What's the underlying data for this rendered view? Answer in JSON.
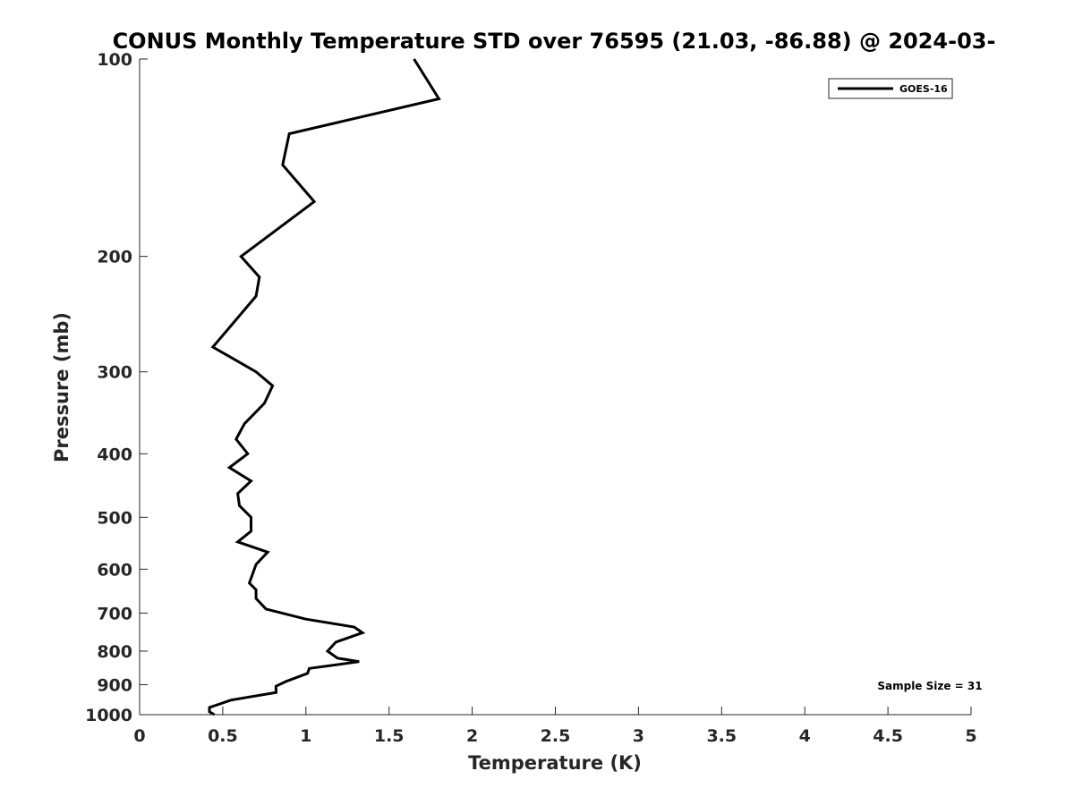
{
  "chart_data": {
    "type": "line",
    "title": "CONUS Monthly Temperature STD over 76595 (21.03, -86.88) @ 2024-03-",
    "xlabel": "Temperature (K)",
    "ylabel": "Pressure (mb)",
    "xlim": [
      0,
      5
    ],
    "ylim": [
      1000,
      100
    ],
    "y_scale": "log",
    "y_reversed": true,
    "x_ticks": [
      "0",
      "0.5",
      "1",
      "1.5",
      "2",
      "2.5",
      "3",
      "3.5",
      "4",
      "4.5",
      "5"
    ],
    "y_ticks": [
      "100",
      "200",
      "300",
      "400",
      "500",
      "600",
      "700",
      "800",
      "900",
      "1000"
    ],
    "grid": false,
    "legend_position": "top-right",
    "series": [
      {
        "name": "GOES-16",
        "color": "#000000",
        "points": [
          [
            1.65,
            100
          ],
          [
            1.8,
            115
          ],
          [
            0.9,
            130
          ],
          [
            0.86,
            145
          ],
          [
            1.05,
            165
          ],
          [
            0.61,
            200
          ],
          [
            0.72,
            215
          ],
          [
            0.7,
            230
          ],
          [
            0.55,
            255
          ],
          [
            0.44,
            275
          ],
          [
            0.7,
            300
          ],
          [
            0.8,
            315
          ],
          [
            0.75,
            335
          ],
          [
            0.63,
            360
          ],
          [
            0.58,
            380
          ],
          [
            0.65,
            400
          ],
          [
            0.54,
            420
          ],
          [
            0.67,
            440
          ],
          [
            0.59,
            460
          ],
          [
            0.6,
            480
          ],
          [
            0.67,
            500
          ],
          [
            0.67,
            525
          ],
          [
            0.59,
            545
          ],
          [
            0.77,
            565
          ],
          [
            0.7,
            590
          ],
          [
            0.68,
            610
          ],
          [
            0.66,
            630
          ],
          [
            0.7,
            645
          ],
          [
            0.7,
            665
          ],
          [
            0.76,
            690
          ],
          [
            1.0,
            715
          ],
          [
            1.29,
            735
          ],
          [
            1.34,
            750
          ],
          [
            1.18,
            775
          ],
          [
            1.13,
            800
          ],
          [
            1.19,
            820
          ],
          [
            1.32,
            830
          ],
          [
            1.02,
            850
          ],
          [
            1.01,
            865
          ],
          [
            0.88,
            890
          ],
          [
            0.82,
            905
          ],
          [
            0.82,
            925
          ],
          [
            0.55,
            950
          ],
          [
            0.42,
            975
          ],
          [
            0.42,
            990
          ],
          [
            0.45,
            1000
          ]
        ]
      }
    ],
    "annotation": "Sample Size = 31"
  }
}
